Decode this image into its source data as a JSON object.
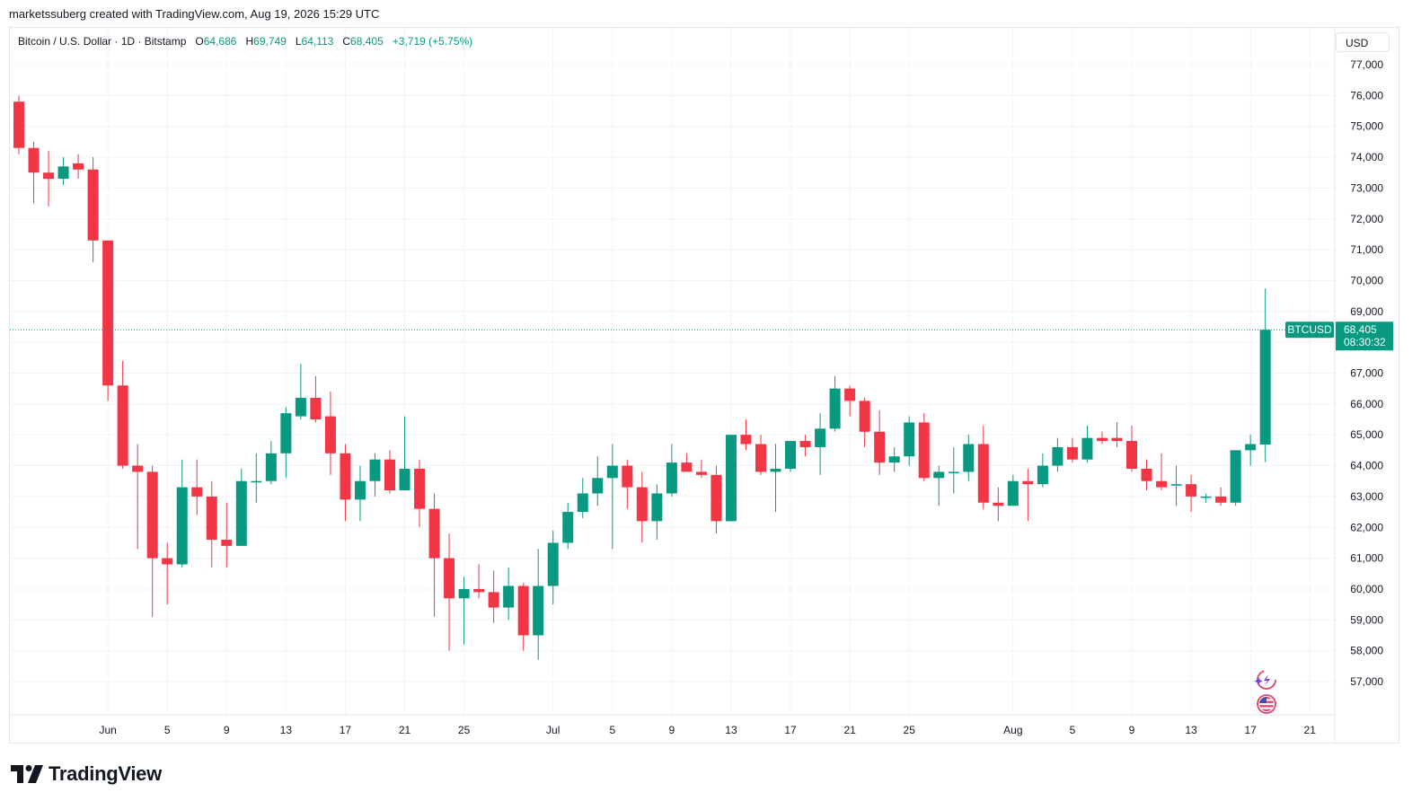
{
  "header": {
    "credit": "marketssuberg created with TradingView.com, Aug 19, 2026 15:29 UTC"
  },
  "legend": {
    "symbol": "Bitcoin / U.S. Dollar · 1D · Bitstamp",
    "open_key": "O",
    "open": "64,686",
    "high_key": "H",
    "high": "69,749",
    "low_key": "L",
    "low": "64,113",
    "close_key": "C",
    "close": "68,405",
    "change": "+3,719 (+5.75%)"
  },
  "currency": "USD",
  "price_label": {
    "ticker": "BTCUSD",
    "price": "68,405",
    "countdown": "08:30:32"
  },
  "footer": {
    "brand": "TradingView"
  },
  "colors": {
    "up": "#089981",
    "down": "#f23645",
    "grid": "#f0f3fa",
    "text": "#131722"
  },
  "icons": [
    "sparkle-bolt-icon",
    "us-flag-icon"
  ],
  "chart_data": {
    "type": "candlestick",
    "y_ticks": [
      57000,
      58000,
      59000,
      60000,
      61000,
      62000,
      63000,
      64000,
      65000,
      66000,
      67000,
      68000,
      69000,
      70000,
      71000,
      72000,
      73000,
      74000,
      75000,
      76000,
      77000
    ],
    "x_ticks": [
      {
        "label": "Jun",
        "date": "2026-06-01"
      },
      {
        "label": "5",
        "date": "2026-06-05"
      },
      {
        "label": "9",
        "date": "2026-06-09"
      },
      {
        "label": "13",
        "date": "2026-06-13"
      },
      {
        "label": "17",
        "date": "2026-06-17"
      },
      {
        "label": "21",
        "date": "2026-06-21"
      },
      {
        "label": "25",
        "date": "2026-06-25"
      },
      {
        "label": "Jul",
        "date": "2026-07-01"
      },
      {
        "label": "5",
        "date": "2026-07-05"
      },
      {
        "label": "9",
        "date": "2026-07-09"
      },
      {
        "label": "13",
        "date": "2026-07-13"
      },
      {
        "label": "17",
        "date": "2026-07-17"
      },
      {
        "label": "21",
        "date": "2026-07-21"
      },
      {
        "label": "25",
        "date": "2026-07-25"
      },
      {
        "label": "Aug",
        "date": "2026-08-01"
      },
      {
        "label": "5",
        "date": "2026-08-05"
      },
      {
        "label": "9",
        "date": "2026-08-09"
      },
      {
        "label": "13",
        "date": "2026-08-13"
      },
      {
        "label": "17",
        "date": "2026-08-17"
      },
      {
        "label": "21",
        "date": "2026-08-21"
      }
    ],
    "last_price": 68405,
    "candles": [
      {
        "date": "2026-05-26",
        "o": 75800,
        "h": 76000,
        "l": 74100,
        "c": 74300
      },
      {
        "date": "2026-05-27",
        "o": 74300,
        "h": 74500,
        "l": 72500,
        "c": 73500
      },
      {
        "date": "2026-05-28",
        "o": 73500,
        "h": 74200,
        "l": 72400,
        "c": 73300
      },
      {
        "date": "2026-05-29",
        "o": 73300,
        "h": 74000,
        "l": 73100,
        "c": 73700
      },
      {
        "date": "2026-05-30",
        "o": 73800,
        "h": 74100,
        "l": 73300,
        "c": 73600
      },
      {
        "date": "2026-05-31",
        "o": 73600,
        "h": 74000,
        "l": 70600,
        "c": 71300
      },
      {
        "date": "2026-06-01",
        "o": 71300,
        "h": 71300,
        "l": 66100,
        "c": 66600
      },
      {
        "date": "2026-06-02",
        "o": 66600,
        "h": 67400,
        "l": 63900,
        "c": 64000
      },
      {
        "date": "2026-06-03",
        "o": 64000,
        "h": 64700,
        "l": 61300,
        "c": 63800
      },
      {
        "date": "2026-06-04",
        "o": 63800,
        "h": 64000,
        "l": 59100,
        "c": 61000
      },
      {
        "date": "2026-06-05",
        "o": 61000,
        "h": 61500,
        "l": 59500,
        "c": 60800
      },
      {
        "date": "2026-06-06",
        "o": 60800,
        "h": 64200,
        "l": 60700,
        "c": 63300
      },
      {
        "date": "2026-06-07",
        "o": 63300,
        "h": 64200,
        "l": 62400,
        "c": 63000
      },
      {
        "date": "2026-06-08",
        "o": 63000,
        "h": 63500,
        "l": 60700,
        "c": 61600
      },
      {
        "date": "2026-06-09",
        "o": 61600,
        "h": 62800,
        "l": 60700,
        "c": 61400
      },
      {
        "date": "2026-06-10",
        "o": 61400,
        "h": 63900,
        "l": 61400,
        "c": 63500
      },
      {
        "date": "2026-06-11",
        "o": 63500,
        "h": 64400,
        "l": 62800,
        "c": 63500
      },
      {
        "date": "2026-06-12",
        "o": 63500,
        "h": 64800,
        "l": 63400,
        "c": 64400
      },
      {
        "date": "2026-06-13",
        "o": 64400,
        "h": 65900,
        "l": 63600,
        "c": 65700
      },
      {
        "date": "2026-06-14",
        "o": 65600,
        "h": 67300,
        "l": 65500,
        "c": 66200
      },
      {
        "date": "2026-06-15",
        "o": 66200,
        "h": 66900,
        "l": 65400,
        "c": 65500
      },
      {
        "date": "2026-06-16",
        "o": 65600,
        "h": 66400,
        "l": 63700,
        "c": 64400
      },
      {
        "date": "2026-06-17",
        "o": 64400,
        "h": 64700,
        "l": 62200,
        "c": 62900
      },
      {
        "date": "2026-06-18",
        "o": 62900,
        "h": 64000,
        "l": 62200,
        "c": 63500
      },
      {
        "date": "2026-06-19",
        "o": 63500,
        "h": 64400,
        "l": 63000,
        "c": 64200
      },
      {
        "date": "2026-06-20",
        "o": 64200,
        "h": 64500,
        "l": 63100,
        "c": 63200
      },
      {
        "date": "2026-06-21",
        "o": 63200,
        "h": 65600,
        "l": 63200,
        "c": 63900
      },
      {
        "date": "2026-06-22",
        "o": 63900,
        "h": 64200,
        "l": 62000,
        "c": 62600
      },
      {
        "date": "2026-06-23",
        "o": 62600,
        "h": 63100,
        "l": 59100,
        "c": 61000
      },
      {
        "date": "2026-06-24",
        "o": 61000,
        "h": 61800,
        "l": 58000,
        "c": 59700
      },
      {
        "date": "2026-06-25",
        "o": 59700,
        "h": 60400,
        "l": 58200,
        "c": 60000
      },
      {
        "date": "2026-06-26",
        "o": 60000,
        "h": 60800,
        "l": 59700,
        "c": 59900
      },
      {
        "date": "2026-06-27",
        "o": 59900,
        "h": 60600,
        "l": 58900,
        "c": 59400
      },
      {
        "date": "2026-06-28",
        "o": 59400,
        "h": 60700,
        "l": 59000,
        "c": 60100
      },
      {
        "date": "2026-06-29",
        "o": 60100,
        "h": 60200,
        "l": 58000,
        "c": 58500
      },
      {
        "date": "2026-06-30",
        "o": 58500,
        "h": 61300,
        "l": 57700,
        "c": 60100
      },
      {
        "date": "2026-07-01",
        "o": 60100,
        "h": 61900,
        "l": 59500,
        "c": 61500
      },
      {
        "date": "2026-07-02",
        "o": 61500,
        "h": 62800,
        "l": 61300,
        "c": 62500
      },
      {
        "date": "2026-07-03",
        "o": 62500,
        "h": 63600,
        "l": 62300,
        "c": 63100
      },
      {
        "date": "2026-07-04",
        "o": 63100,
        "h": 64300,
        "l": 62700,
        "c": 63600
      },
      {
        "date": "2026-07-05",
        "o": 63600,
        "h": 64700,
        "l": 61300,
        "c": 64000
      },
      {
        "date": "2026-07-06",
        "o": 64000,
        "h": 64200,
        "l": 62600,
        "c": 63300
      },
      {
        "date": "2026-07-07",
        "o": 63300,
        "h": 63800,
        "l": 61500,
        "c": 62200
      },
      {
        "date": "2026-07-08",
        "o": 62200,
        "h": 63400,
        "l": 61600,
        "c": 63100
      },
      {
        "date": "2026-07-09",
        "o": 63100,
        "h": 64700,
        "l": 63000,
        "c": 64100
      },
      {
        "date": "2026-07-10",
        "o": 64100,
        "h": 64400,
        "l": 63800,
        "c": 63800
      },
      {
        "date": "2026-07-11",
        "o": 63800,
        "h": 64200,
        "l": 63600,
        "c": 63700
      },
      {
        "date": "2026-07-12",
        "o": 63700,
        "h": 64000,
        "l": 61800,
        "c": 62200
      },
      {
        "date": "2026-07-13",
        "o": 62200,
        "h": 65000,
        "l": 62200,
        "c": 65000
      },
      {
        "date": "2026-07-14",
        "o": 65000,
        "h": 65500,
        "l": 64500,
        "c": 64700
      },
      {
        "date": "2026-07-15",
        "o": 64700,
        "h": 65000,
        "l": 63700,
        "c": 63800
      },
      {
        "date": "2026-07-16",
        "o": 63800,
        "h": 64700,
        "l": 62500,
        "c": 63900
      },
      {
        "date": "2026-07-17",
        "o": 63900,
        "h": 64800,
        "l": 63800,
        "c": 64800
      },
      {
        "date": "2026-07-18",
        "o": 64800,
        "h": 65000,
        "l": 64300,
        "c": 64600
      },
      {
        "date": "2026-07-19",
        "o": 64600,
        "h": 65700,
        "l": 63700,
        "c": 65200
      },
      {
        "date": "2026-07-20",
        "o": 65200,
        "h": 66900,
        "l": 65100,
        "c": 66500
      },
      {
        "date": "2026-07-21",
        "o": 66500,
        "h": 66600,
        "l": 65600,
        "c": 66100
      },
      {
        "date": "2026-07-22",
        "o": 66100,
        "h": 66200,
        "l": 64600,
        "c": 65100
      },
      {
        "date": "2026-07-23",
        "o": 65100,
        "h": 65800,
        "l": 63700,
        "c": 64100
      },
      {
        "date": "2026-07-24",
        "o": 64100,
        "h": 64600,
        "l": 63800,
        "c": 64300
      },
      {
        "date": "2026-07-25",
        "o": 64300,
        "h": 65600,
        "l": 64000,
        "c": 65400
      },
      {
        "date": "2026-07-26",
        "o": 65400,
        "h": 65700,
        "l": 63500,
        "c": 63600
      },
      {
        "date": "2026-07-27",
        "o": 63600,
        "h": 64000,
        "l": 62700,
        "c": 63800
      },
      {
        "date": "2026-07-28",
        "o": 63800,
        "h": 64600,
        "l": 63100,
        "c": 63800
      },
      {
        "date": "2026-07-29",
        "o": 63800,
        "h": 65000,
        "l": 63500,
        "c": 64700
      },
      {
        "date": "2026-07-30",
        "o": 64700,
        "h": 65300,
        "l": 62600,
        "c": 62800
      },
      {
        "date": "2026-07-31",
        "o": 62800,
        "h": 63300,
        "l": 62200,
        "c": 62700
      },
      {
        "date": "2026-08-01",
        "o": 62700,
        "h": 63700,
        "l": 62700,
        "c": 63500
      },
      {
        "date": "2026-08-02",
        "o": 63500,
        "h": 63900,
        "l": 62200,
        "c": 63400
      },
      {
        "date": "2026-08-03",
        "o": 63400,
        "h": 64400,
        "l": 63300,
        "c": 64000
      },
      {
        "date": "2026-08-04",
        "o": 64000,
        "h": 64900,
        "l": 63800,
        "c": 64600
      },
      {
        "date": "2026-08-05",
        "o": 64600,
        "h": 64900,
        "l": 64100,
        "c": 64200
      },
      {
        "date": "2026-08-06",
        "o": 64200,
        "h": 65300,
        "l": 64100,
        "c": 64900
      },
      {
        "date": "2026-08-07",
        "o": 64900,
        "h": 65100,
        "l": 64700,
        "c": 64800
      },
      {
        "date": "2026-08-08",
        "o": 64900,
        "h": 65400,
        "l": 64600,
        "c": 64800
      },
      {
        "date": "2026-08-09",
        "o": 64800,
        "h": 65300,
        "l": 63800,
        "c": 63900
      },
      {
        "date": "2026-08-10",
        "o": 63900,
        "h": 64200,
        "l": 63200,
        "c": 63500
      },
      {
        "date": "2026-08-11",
        "o": 63500,
        "h": 64400,
        "l": 63200,
        "c": 63300
      },
      {
        "date": "2026-08-12",
        "o": 63400,
        "h": 64000,
        "l": 62700,
        "c": 63400
      },
      {
        "date": "2026-08-13",
        "o": 63400,
        "h": 63700,
        "l": 62500,
        "c": 63000
      },
      {
        "date": "2026-08-14",
        "o": 63000,
        "h": 63100,
        "l": 62800,
        "c": 63000
      },
      {
        "date": "2026-08-15",
        "o": 63000,
        "h": 63300,
        "l": 62700,
        "c": 62800
      },
      {
        "date": "2026-08-16",
        "o": 62800,
        "h": 64500,
        "l": 62700,
        "c": 64500
      },
      {
        "date": "2026-08-17",
        "o": 64500,
        "h": 65000,
        "l": 64000,
        "c": 64700
      },
      {
        "date": "2026-08-18",
        "o": 64686,
        "h": 69749,
        "l": 64113,
        "c": 68405
      }
    ]
  }
}
